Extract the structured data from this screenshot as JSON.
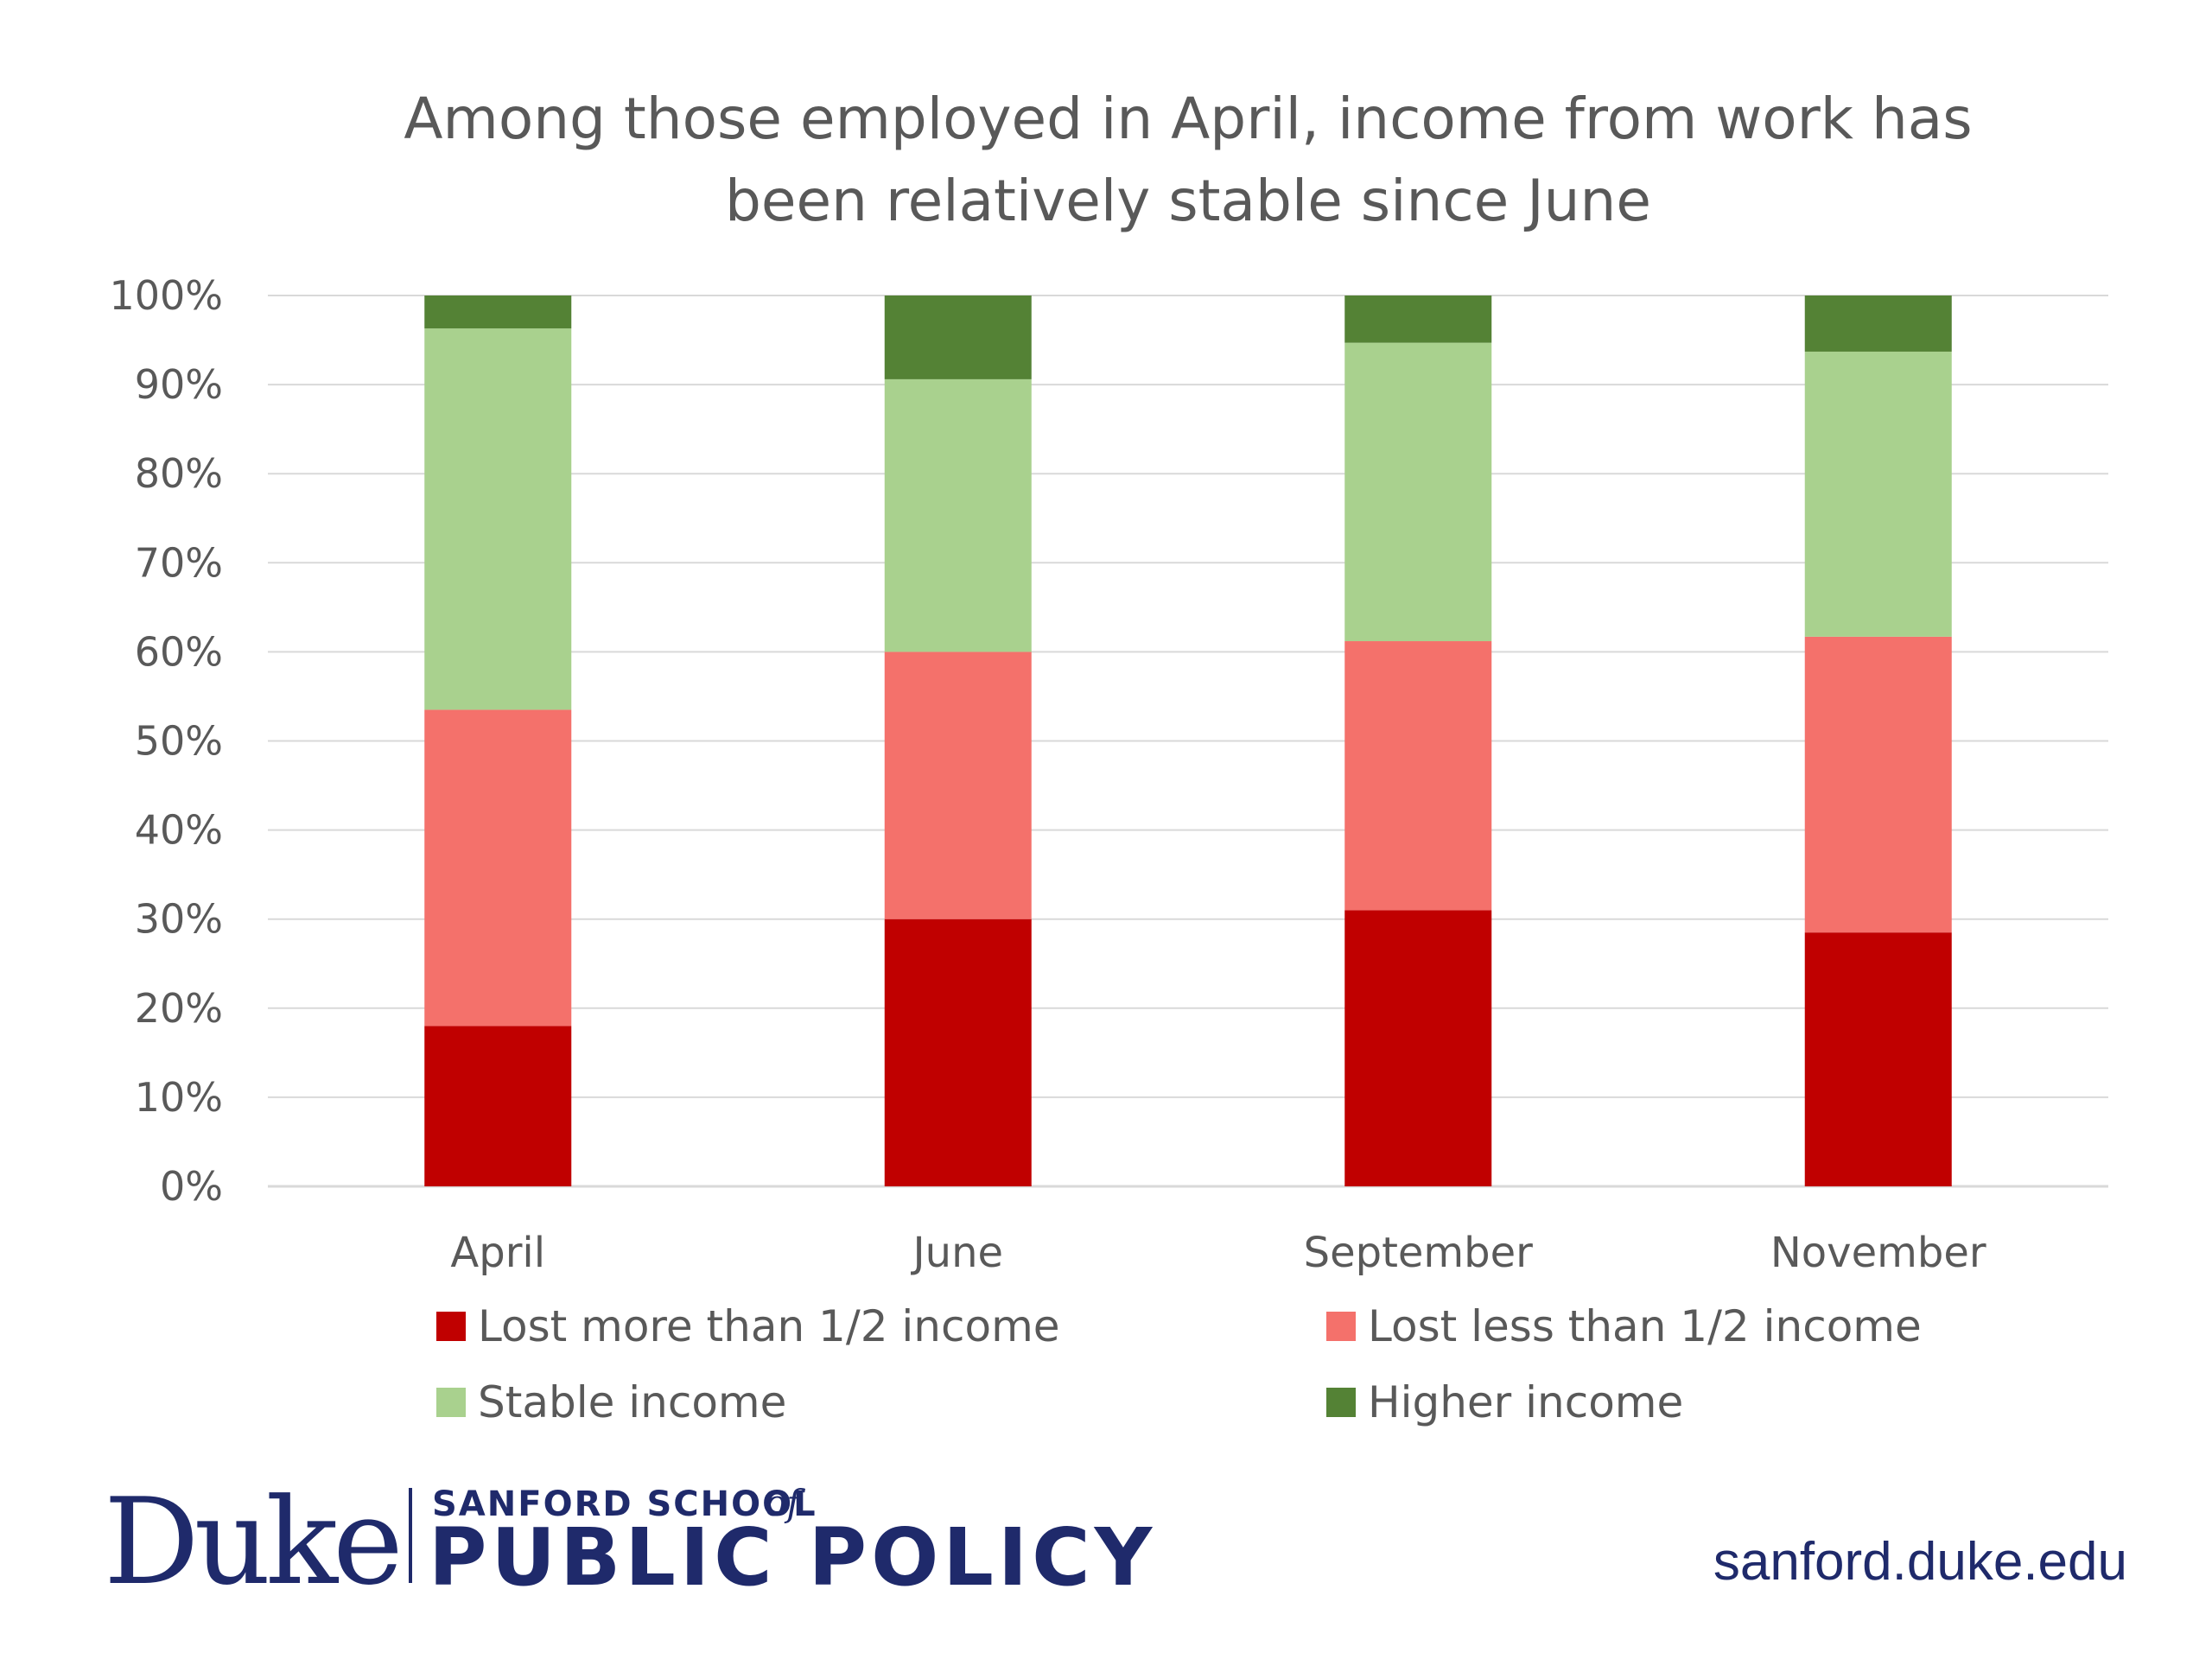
{
  "chart_data": {
    "type": "bar",
    "stacked": true,
    "title_lines": [
      "Among those employed in April, income from work has",
      "been relatively stable since June"
    ],
    "categories": [
      "April",
      "June",
      "September",
      "November"
    ],
    "ylim": [
      0,
      100
    ],
    "yticks": [
      "0%",
      "10%",
      "20%",
      "30%",
      "40%",
      "50%",
      "60%",
      "70%",
      "80%",
      "90%",
      "100%"
    ],
    "grid": true,
    "legend_position": "bottom",
    "series": [
      {
        "name": "Lost more than 1/2 income",
        "color": "#c00000",
        "values": [
          18,
          30,
          31,
          28.5
        ]
      },
      {
        "name": "Lost less than 1/2 income",
        "color": "#f4716b",
        "values": [
          35.5,
          30,
          30.2,
          33.2
        ]
      },
      {
        "name": "Stable income",
        "color": "#a9d18e",
        "values": [
          42.8,
          30.6,
          33.5,
          32
        ]
      },
      {
        "name": "Higher income",
        "color": "#548235",
        "values": [
          3.7,
          9.4,
          5.3,
          6.3
        ]
      }
    ]
  },
  "footer": {
    "logo_duke": "Duke",
    "logo_school": "SANFORD SCHOOL",
    "logo_school_of": "of",
    "logo_policy": "PUBLIC POLICY",
    "url": "sanford.duke.edu"
  }
}
